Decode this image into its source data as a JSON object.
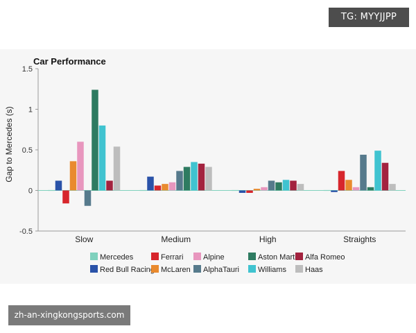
{
  "badge": {
    "text": "TG: MYYJJPP"
  },
  "watermark": {
    "text": "zh-an-xingkongsports.com"
  },
  "chart_data": {
    "type": "bar",
    "title": "Car Performance",
    "xlabel": "",
    "ylabel": "Gap to Mercedes (s)",
    "ylim": [
      -0.5,
      1.5
    ],
    "yticks": [
      -0.5,
      0,
      0.5,
      1,
      1.5
    ],
    "ytick_labels": [
      "-0.5",
      "0",
      "0.5",
      "1",
      "1.5"
    ],
    "categories": [
      "Slow",
      "Medium",
      "High",
      "Straights"
    ],
    "grid": false,
    "legend": "bottom",
    "series": [
      {
        "name": "Mercedes",
        "color": "#7fd1bd",
        "values": [
          0,
          0,
          0,
          0
        ]
      },
      {
        "name": "Red Bull Racing",
        "color": "#2a52a8",
        "values": [
          0.12,
          0.17,
          -0.03,
          -0.02
        ]
      },
      {
        "name": "Ferrari",
        "color": "#d7262c",
        "values": [
          -0.16,
          0.06,
          -0.03,
          0.24
        ]
      },
      {
        "name": "McLaren",
        "color": "#e98a2e",
        "values": [
          0.36,
          0.08,
          0.02,
          0.13
        ]
      },
      {
        "name": "Alpine",
        "color": "#e896be",
        "values": [
          0.6,
          0.1,
          0.04,
          0.04
        ]
      },
      {
        "name": "AlphaTauri",
        "color": "#567a8c",
        "values": [
          -0.19,
          0.24,
          0.12,
          0.44
        ]
      },
      {
        "name": "Aston Martin",
        "color": "#2e7b61",
        "values": [
          1.24,
          0.29,
          0.1,
          0.04
        ]
      },
      {
        "name": "Williams",
        "color": "#40c3d0",
        "values": [
          0.8,
          0.35,
          0.13,
          0.49
        ]
      },
      {
        "name": "Alfa Romeo",
        "color": "#a3233f",
        "values": [
          0.12,
          0.33,
          0.12,
          0.34
        ]
      },
      {
        "name": "Haas",
        "color": "#bdbdbd",
        "values": [
          0.54,
          0.29,
          0.08,
          0.08
        ]
      }
    ],
    "legend_rows": [
      [
        "Mercedes",
        "Ferrari",
        "Alpine",
        "Aston Martin",
        "Alfa Romeo"
      ],
      [
        "Red Bull Racing",
        "McLaren",
        "AlphaTauri",
        "Williams",
        "Haas"
      ]
    ]
  }
}
